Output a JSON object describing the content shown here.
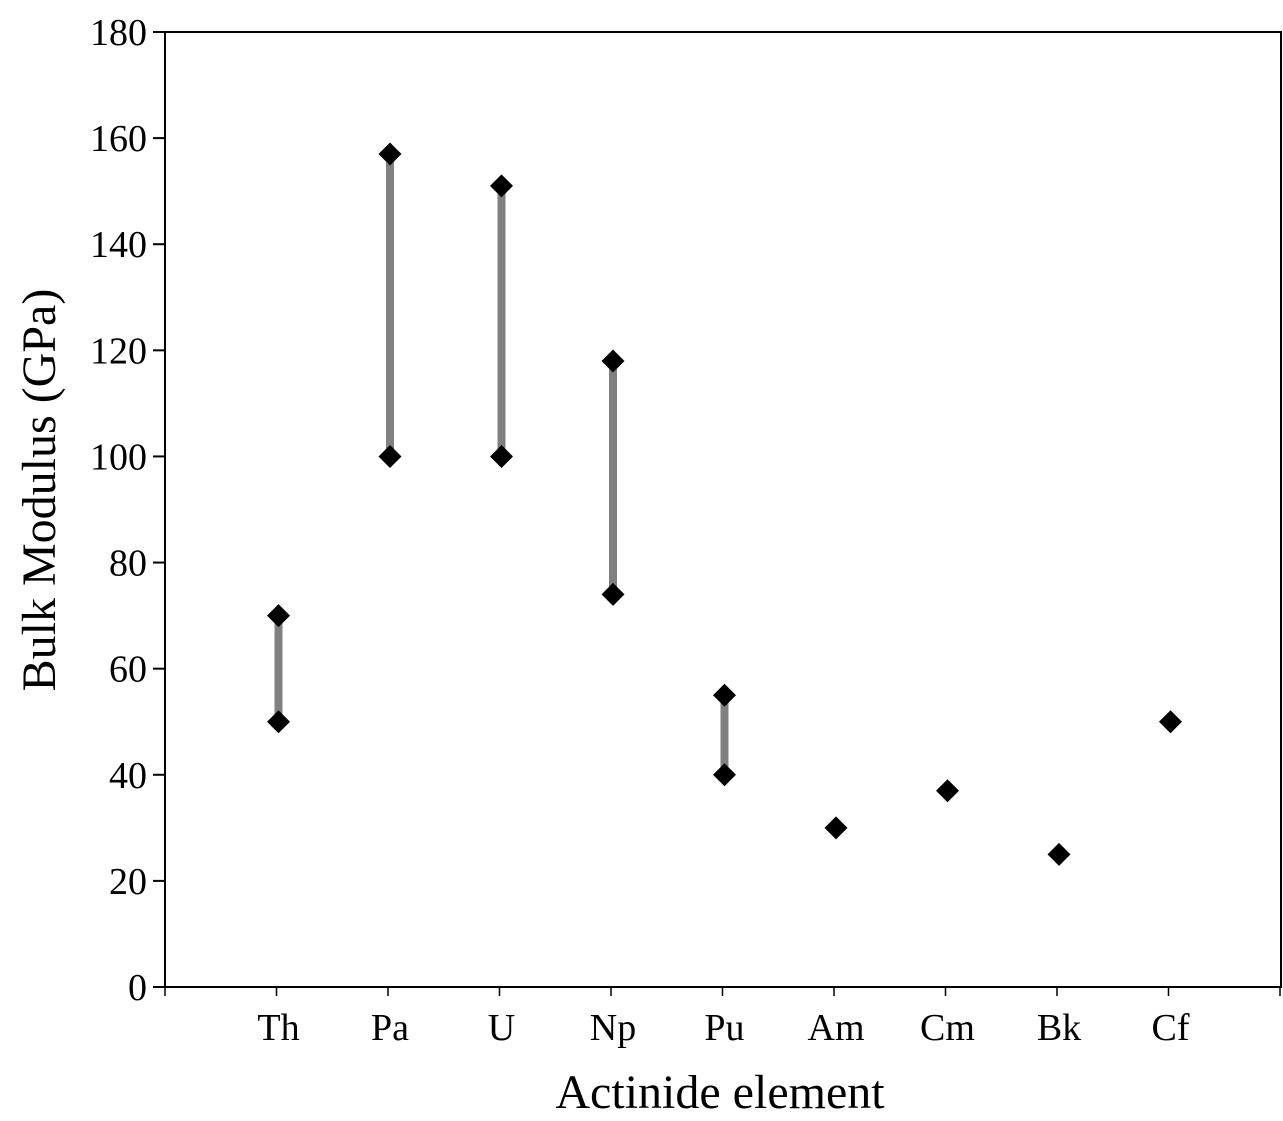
{
  "chart_data": {
    "type": "scatter",
    "title": "",
    "xlabel": "Actinide element",
    "ylabel": "Bulk Modulus (GPa)",
    "categories": [
      "Th",
      "Pa",
      "U",
      "Np",
      "Pu",
      "Am",
      "Cm",
      "Bk",
      "Cf"
    ],
    "ylim": [
      0,
      180
    ],
    "yticks": [
      0,
      20,
      40,
      60,
      80,
      100,
      120,
      140,
      160,
      180
    ],
    "ytick_labels": [
      "0",
      "20",
      "40",
      "60",
      "80",
      "100",
      "120",
      "140",
      "160",
      "180"
    ],
    "grid": false,
    "legend": "none",
    "ranges": [
      {
        "category": "Th",
        "low": 50,
        "high": 70
      },
      {
        "category": "Pa",
        "low": 100,
        "high": 157
      },
      {
        "category": "U",
        "low": 100,
        "high": 151
      },
      {
        "category": "Np",
        "low": 74,
        "high": 118
      },
      {
        "category": "Pu",
        "low": 40,
        "high": 55
      },
      {
        "category": "Am",
        "low": 30,
        "high": 30
      },
      {
        "category": "Cm",
        "low": 37,
        "high": 37
      },
      {
        "category": "Bk",
        "low": 25,
        "high": 25
      },
      {
        "category": "Cf",
        "low": 50,
        "high": 50
      }
    ],
    "colors": {
      "range_bar": "#808080",
      "marker": "#000000",
      "axis": "#000000"
    }
  }
}
